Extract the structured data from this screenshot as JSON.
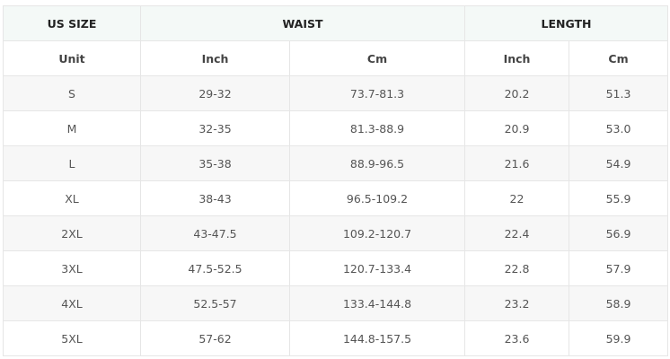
{
  "table": {
    "headers": {
      "size": "US SIZE",
      "waist": "WAIST",
      "length": "LENGTH"
    },
    "units": [
      "Unit",
      "Inch",
      "Cm",
      "Inch",
      "Cm"
    ],
    "rows": [
      [
        "S",
        "29-32",
        "73.7-81.3",
        "20.2",
        "51.3"
      ],
      [
        "M",
        "32-35",
        "81.3-88.9",
        "20.9",
        "53.0"
      ],
      [
        "L",
        "35-38",
        "88.9-96.5",
        "21.6",
        "54.9"
      ],
      [
        "XL",
        "38-43",
        "96.5-109.2",
        "22",
        "55.9"
      ],
      [
        "2XL",
        "43-47.5",
        "109.2-120.7",
        "22.4",
        "56.9"
      ],
      [
        "3XL",
        "47.5-52.5",
        "120.7-133.4",
        "22.8",
        "57.9"
      ],
      [
        "4XL",
        "52.5-57",
        "133.4-144.8",
        "23.2",
        "58.9"
      ],
      [
        "5XL",
        "57-62",
        "144.8-157.5",
        "23.6",
        "59.9"
      ]
    ]
  }
}
